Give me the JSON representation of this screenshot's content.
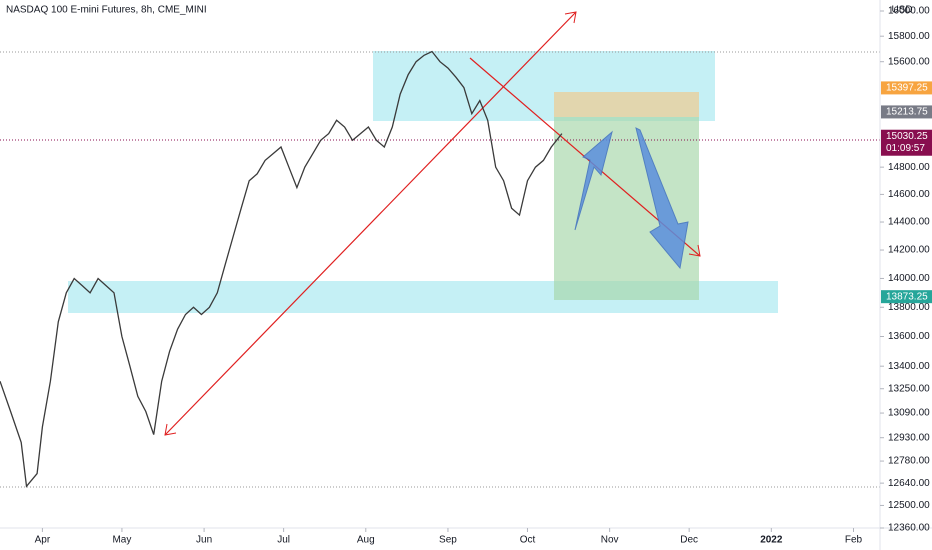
{
  "chart_data": {
    "type": "line",
    "title": "NASDAQ 100 E-mini Futures, 8h, CME_MINI",
    "currency": "USD",
    "log_scale": true,
    "color": "#3a3a3a",
    "x": [
      -16,
      -12,
      -8,
      -6,
      -2,
      0,
      3,
      6,
      9,
      12,
      15,
      18,
      21,
      24,
      27,
      30,
      33,
      36,
      39,
      42,
      45,
      48,
      51,
      54,
      57,
      60,
      63,
      66,
      69,
      72,
      75,
      78,
      81,
      84,
      87,
      90,
      93,
      96,
      99,
      102,
      105,
      108,
      111,
      114,
      117,
      120,
      123,
      126,
      129,
      132,
      135,
      138,
      141,
      144,
      147,
      150,
      153,
      156,
      159,
      162,
      165,
      168,
      171,
      174,
      177,
      180,
      183,
      186,
      189,
      192,
      196
    ],
    "values": [
      13300,
      13100,
      12900,
      12620,
      12700,
      13000,
      13300,
      13700,
      13900,
      14000,
      13950,
      13900,
      14000,
      13950,
      13900,
      13600,
      13400,
      13200,
      13100,
      12950,
      13300,
      13500,
      13650,
      13750,
      13800,
      13750,
      13800,
      13900,
      14100,
      14300,
      14500,
      14700,
      14750,
      14850,
      14900,
      14950,
      14800,
      14650,
      14800,
      14900,
      15000,
      15050,
      15150,
      15100,
      15000,
      15050,
      15100,
      15000,
      14950,
      15100,
      15350,
      15500,
      15600,
      15650,
      15680,
      15600,
      15550,
      15480,
      15400,
      15200,
      15300,
      15150,
      14800,
      14700,
      14500,
      14450,
      14700,
      14800,
      14850,
      14950,
      15050
    ],
    "xlim": [
      -16,
      316
    ],
    "xticks": [
      {
        "value": 0,
        "label": "Apr"
      },
      {
        "value": 30,
        "label": "May"
      },
      {
        "value": 61,
        "label": "Jun"
      },
      {
        "value": 91,
        "label": "Jul"
      },
      {
        "value": 122,
        "label": "Aug"
      },
      {
        "value": 153,
        "label": "Sep"
      },
      {
        "value": 183,
        "label": "Oct"
      },
      {
        "value": 214,
        "label": "Nov"
      },
      {
        "value": 244,
        "label": "Dec"
      },
      {
        "value": 275,
        "label": "2022"
      },
      {
        "value": 306,
        "label": "Feb"
      }
    ],
    "ylim": [
      12360,
      16000
    ],
    "yticks": [
      {
        "value": 16000,
        "label": "16000.00"
      },
      {
        "value": 15800,
        "label": "15800.00"
      },
      {
        "value": 15600,
        "label": "15600.00"
      },
      {
        "value": 14800,
        "label": "14800.00"
      },
      {
        "value": 14600,
        "label": "14600.00"
      },
      {
        "value": 14400,
        "label": "14400.00"
      },
      {
        "value": 14200,
        "label": "14200.00"
      },
      {
        "value": 14000,
        "label": "14000.00"
      },
      {
        "value": 13800,
        "label": "13800.00"
      },
      {
        "value": 13600,
        "label": "13600.00"
      },
      {
        "value": 13400,
        "label": "13400.00"
      },
      {
        "value": 13250,
        "label": "13250.00"
      },
      {
        "value": 13090,
        "label": "13090.00"
      },
      {
        "value": 12930,
        "label": "12930.00"
      },
      {
        "value": 12780,
        "label": "12780.00"
      },
      {
        "value": 12640,
        "label": "12640.00"
      },
      {
        "value": 12500,
        "label": "12500.00"
      },
      {
        "value": 12360,
        "label": "12360.00"
      }
    ],
    "price_badges": [
      {
        "value": 15397.25,
        "label": "15397.25",
        "color": "#f7a440"
      },
      {
        "value": 15213.75,
        "label": "15213.75",
        "color": "#787b86"
      },
      {
        "value": 15030.25,
        "label": "15030.25",
        "color": "#880e4f",
        "countdown": "01:09:57"
      },
      {
        "value": 13873.25,
        "label": "13873.25",
        "color": "#26a69a"
      }
    ]
  }
}
